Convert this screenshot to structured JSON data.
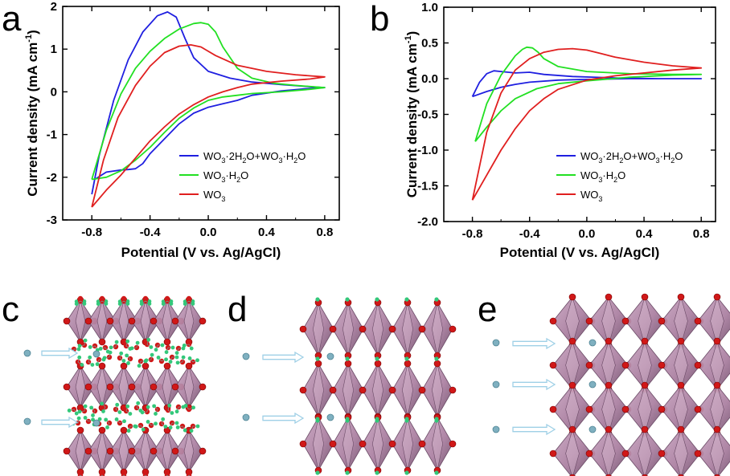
{
  "panel_labels": {
    "a": "a",
    "b": "b",
    "c": "c",
    "d": "d",
    "e": "e"
  },
  "colors": {
    "blue": "#1f1fe0",
    "green": "#22e022",
    "red": "#e01f1f",
    "octa_face": "#b48aa8",
    "octa_dark": "#6b4a66",
    "oxygen": "#d01818",
    "hydrogen": "#33c87a",
    "ion": "#7fb0c0",
    "arrow": "#9fd0e6"
  },
  "legend_labels": {
    "blue": {
      "main1": "WO",
      "s1": "3",
      "dot1": "·2H",
      "s2": "2",
      "main2": "O+WO",
      "s3": "3",
      "dot2": "·H",
      "s4": "2",
      "end": "O"
    },
    "green": {
      "main1": "WO",
      "s1": "3",
      "dot1": "·H",
      "s2": "2",
      "end": "O"
    },
    "red": {
      "main1": "WO",
      "s1": "3"
    }
  },
  "chart_data": [
    {
      "panel": "a",
      "type": "line",
      "title": "",
      "xlabel": "Potential (V vs. Ag/AgCl)",
      "ylabel_main": "Current density (mA cm",
      "ylabel_sup": "-1",
      "ylabel_end": ")",
      "xlim": [
        -1.0,
        0.9
      ],
      "ylim": [
        -3,
        2
      ],
      "xticks": [
        -0.8,
        -0.4,
        0.0,
        0.4,
        0.8
      ],
      "xtick_labels": [
        "-0.8",
        "-0.4",
        "0.0",
        "0.4",
        "0.8"
      ],
      "yticks": [
        -3,
        -2,
        -1,
        0,
        1,
        2
      ],
      "ytick_labels": [
        "-3",
        "-2",
        "-1",
        "0",
        "1",
        "2"
      ],
      "legend_position": "bottom-right",
      "series": [
        {
          "name": "WO3·2H2O+WO3·H2O",
          "color_key": "blue",
          "x": [
            -0.8,
            -0.75,
            -0.65,
            -0.55,
            -0.45,
            -0.35,
            -0.28,
            -0.22,
            -0.16,
            -0.1,
            0.0,
            0.15,
            0.3,
            0.5,
            0.7,
            0.8,
            0.7,
            0.5,
            0.3,
            0.2,
            0.1,
            0.0,
            -0.1,
            -0.2,
            -0.3,
            -0.4,
            -0.45,
            -0.5,
            -0.55,
            -0.6,
            -0.7,
            -0.78,
            -0.8
          ],
          "y": [
            -2.4,
            -1.5,
            -0.2,
            0.75,
            1.4,
            1.78,
            1.87,
            1.75,
            1.25,
            0.8,
            0.48,
            0.32,
            0.23,
            0.17,
            0.12,
            0.1,
            0.08,
            0.02,
            -0.08,
            -0.2,
            -0.28,
            -0.36,
            -0.5,
            -0.75,
            -1.1,
            -1.45,
            -1.68,
            -1.8,
            -1.82,
            -1.83,
            -1.88,
            -2.05,
            -2.4
          ]
        },
        {
          "name": "WO3·H2O",
          "color_key": "green",
          "x": [
            -0.8,
            -0.7,
            -0.6,
            -0.5,
            -0.4,
            -0.3,
            -0.2,
            -0.1,
            -0.05,
            0.0,
            0.05,
            0.1,
            0.2,
            0.3,
            0.45,
            0.6,
            0.8,
            0.7,
            0.5,
            0.3,
            0.2,
            0.1,
            0.0,
            -0.1,
            -0.2,
            -0.3,
            -0.4,
            -0.5,
            -0.6,
            -0.7,
            -0.8
          ],
          "y": [
            -2.05,
            -0.9,
            -0.05,
            0.55,
            0.95,
            1.25,
            1.47,
            1.6,
            1.62,
            1.58,
            1.4,
            1.05,
            0.55,
            0.32,
            0.2,
            0.15,
            0.1,
            0.06,
            0.0,
            -0.04,
            -0.08,
            -0.12,
            -0.2,
            -0.38,
            -0.62,
            -0.95,
            -1.3,
            -1.6,
            -1.85,
            -2.0,
            -2.05
          ]
        },
        {
          "name": "WO3",
          "color_key": "red",
          "x": [
            -0.8,
            -0.72,
            -0.62,
            -0.5,
            -0.4,
            -0.3,
            -0.2,
            -0.12,
            -0.05,
            0.05,
            0.2,
            0.4,
            0.6,
            0.8,
            0.7,
            0.5,
            0.3,
            0.2,
            0.1,
            0.0,
            -0.1,
            -0.2,
            -0.3,
            -0.4,
            -0.5,
            -0.6,
            -0.7,
            -0.8
          ],
          "y": [
            -2.7,
            -1.6,
            -0.6,
            0.15,
            0.6,
            0.92,
            1.07,
            1.1,
            1.05,
            0.85,
            0.62,
            0.48,
            0.4,
            0.35,
            0.3,
            0.25,
            0.18,
            0.1,
            0.0,
            -0.12,
            -0.3,
            -0.52,
            -0.82,
            -1.15,
            -1.55,
            -1.95,
            -2.3,
            -2.7
          ]
        }
      ]
    },
    {
      "panel": "b",
      "type": "line",
      "title": "",
      "xlabel": "Potential (V vs. Ag/AgCl)",
      "ylabel_main": "Current density (mA cm",
      "ylabel_sup": "-1",
      "ylabel_end": ")",
      "xlim": [
        -1.0,
        0.9
      ],
      "ylim": [
        -2.0,
        1.0
      ],
      "xticks": [
        -0.8,
        -0.4,
        0.0,
        0.4,
        0.8
      ],
      "xtick_labels": [
        "-0.8",
        "-0.4",
        "0.0",
        "0.4",
        "0.8"
      ],
      "yticks": [
        -2.0,
        -1.5,
        -1.0,
        -0.5,
        0.0,
        0.5,
        1.0
      ],
      "ytick_labels": [
        "-2.0",
        "-1.5",
        "-1.0",
        "-0.5",
        "0.0",
        "0.5",
        "1.0"
      ],
      "legend_position": "bottom-right",
      "series": [
        {
          "name": "WO3·2H2O+WO3·H2O",
          "color_key": "blue",
          "x": [
            -0.8,
            -0.75,
            -0.7,
            -0.65,
            -0.6,
            -0.5,
            -0.4,
            -0.3,
            -0.1,
            0.2,
            0.5,
            0.8,
            0.6,
            0.3,
            0.0,
            -0.2,
            -0.4,
            -0.5,
            -0.6,
            -0.7,
            -0.8
          ],
          "y": [
            -0.25,
            -0.05,
            0.07,
            0.11,
            0.1,
            0.08,
            0.09,
            0.06,
            0.03,
            0.01,
            0.0,
            0.0,
            0.0,
            0.0,
            -0.01,
            -0.02,
            -0.05,
            -0.08,
            -0.12,
            -0.18,
            -0.25
          ]
        },
        {
          "name": "WO3·H2O",
          "color_key": "green",
          "x": [
            -0.78,
            -0.7,
            -0.6,
            -0.5,
            -0.45,
            -0.42,
            -0.38,
            -0.34,
            -0.3,
            -0.2,
            0.0,
            0.3,
            0.6,
            0.8,
            0.6,
            0.3,
            0.0,
            -0.2,
            -0.35,
            -0.5,
            -0.6,
            -0.7,
            -0.78
          ],
          "y": [
            -0.88,
            -0.35,
            0.05,
            0.32,
            0.41,
            0.44,
            0.43,
            0.37,
            0.28,
            0.17,
            0.1,
            0.07,
            0.06,
            0.06,
            0.05,
            0.02,
            -0.03,
            -0.07,
            -0.14,
            -0.28,
            -0.45,
            -0.68,
            -0.88
          ]
        },
        {
          "name": "WO3",
          "color_key": "red",
          "x": [
            -0.8,
            -0.7,
            -0.6,
            -0.5,
            -0.4,
            -0.3,
            -0.2,
            -0.1,
            0.0,
            0.1,
            0.2,
            0.4,
            0.6,
            0.8,
            0.6,
            0.4,
            0.2,
            0.0,
            -0.2,
            -0.3,
            -0.4,
            -0.5,
            -0.6,
            -0.7,
            -0.8
          ],
          "y": [
            -1.7,
            -0.75,
            -0.2,
            0.12,
            0.28,
            0.37,
            0.41,
            0.42,
            0.4,
            0.35,
            0.3,
            0.23,
            0.18,
            0.15,
            0.12,
            0.08,
            0.04,
            -0.02,
            -0.15,
            -0.28,
            -0.45,
            -0.7,
            -1.0,
            -1.35,
            -1.7
          ]
        }
      ]
    }
  ]
}
